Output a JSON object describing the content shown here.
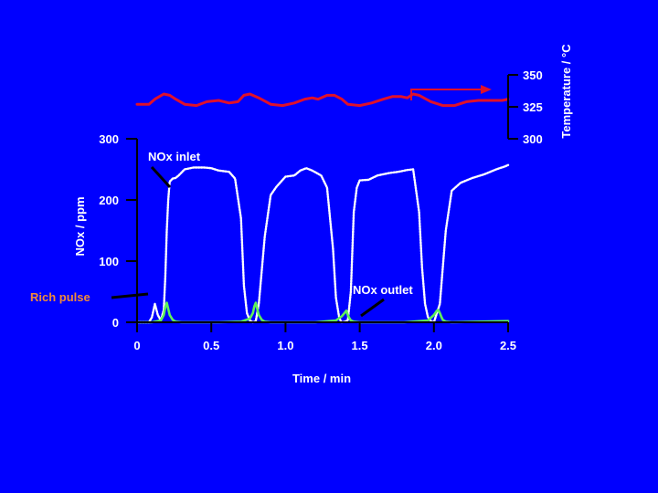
{
  "chart_data": {
    "type": "line",
    "background": "#0000ff",
    "xlabel": "Time / min",
    "ylabel": "NOx / ppm",
    "ylabel2": "Temperature / °C",
    "xlim": [
      0,
      2.5
    ],
    "ylim": [
      0,
      300
    ],
    "ylim2": [
      300,
      350
    ],
    "x_ticks": [
      "0",
      "0.5",
      "1.0",
      "1.5",
      "2.0",
      "2.5"
    ],
    "y_ticks": [
      "0",
      "100",
      "200",
      "300"
    ],
    "y2_ticks": [
      "300",
      "325",
      "350"
    ],
    "grid": false,
    "annotations": {
      "nox_inlet": "NOx inlet",
      "nox_outlet": "NOx outlet",
      "rich_pulse": "Rich pulse"
    },
    "series": [
      {
        "key": "temperature",
        "axis": "y2",
        "color": "#e0102a",
        "x": [
          0,
          0.08,
          0.12,
          0.18,
          0.22,
          0.26,
          0.32,
          0.4,
          0.47,
          0.55,
          0.62,
          0.68,
          0.72,
          0.76,
          0.82,
          0.9,
          0.98,
          1.06,
          1.13,
          1.18,
          1.22,
          1.28,
          1.33,
          1.38,
          1.42,
          1.5,
          1.58,
          1.66,
          1.72,
          1.78,
          1.82,
          1.86,
          1.9,
          1.98,
          2.06,
          2.14,
          2.22,
          2.3,
          2.38,
          2.46,
          2.5
        ],
        "values": [
          327,
          327,
          331,
          335,
          334,
          331,
          327,
          326,
          329,
          330,
          328,
          329,
          334,
          335,
          332,
          327,
          326,
          328,
          331,
          332,
          331,
          334,
          334,
          331,
          327,
          326,
          328,
          331,
          333,
          333,
          332,
          335,
          334,
          329,
          326,
          326,
          329,
          330,
          330,
          330,
          331
        ]
      },
      {
        "key": "nox_inlet",
        "axis": "y",
        "color": "#ffffff",
        "x": [
          0,
          0.08,
          0.1,
          0.12,
          0.14,
          0.16,
          0.18,
          0.19,
          0.2,
          0.21,
          0.22,
          0.24,
          0.26,
          0.28,
          0.32,
          0.38,
          0.45,
          0.5,
          0.55,
          0.62,
          0.66,
          0.7,
          0.72,
          0.74,
          0.76,
          0.78,
          0.8,
          0.82,
          0.86,
          0.9,
          0.94,
          1.0,
          1.06,
          1.1,
          1.14,
          1.18,
          1.24,
          1.28,
          1.32,
          1.34,
          1.36,
          1.37,
          1.38,
          1.4,
          1.42,
          1.44,
          1.46,
          1.48,
          1.5,
          1.56,
          1.62,
          1.7,
          1.76,
          1.82,
          1.86,
          1.9,
          1.92,
          1.94,
          1.96,
          1.98,
          2.0,
          2.04,
          2.08,
          2.12,
          2.18,
          2.26,
          2.34,
          2.42,
          2.48,
          2.5
        ],
        "values": [
          0,
          0,
          8,
          30,
          12,
          3,
          20,
          75,
          150,
          200,
          230,
          235,
          236,
          240,
          250,
          253,
          253,
          252,
          248,
          246,
          235,
          170,
          60,
          15,
          3,
          0,
          2,
          30,
          140,
          208,
          222,
          238,
          240,
          248,
          252,
          248,
          240,
          220,
          120,
          40,
          10,
          3,
          0,
          1,
          3,
          50,
          180,
          220,
          232,
          233,
          240,
          244,
          246,
          249,
          250,
          180,
          90,
          30,
          8,
          2,
          0,
          30,
          150,
          215,
          228,
          236,
          242,
          250,
          255,
          257
        ]
      },
      {
        "key": "nox_outlet",
        "axis": "y",
        "color": "#5ff25a",
        "x": [
          0,
          0.1,
          0.16,
          0.18,
          0.19,
          0.2,
          0.21,
          0.22,
          0.24,
          0.26,
          0.3,
          0.55,
          0.7,
          0.76,
          0.78,
          0.79,
          0.8,
          0.81,
          0.82,
          0.84,
          0.86,
          0.9,
          1.2,
          1.34,
          1.38,
          1.4,
          1.41,
          1.42,
          1.43,
          1.44,
          1.46,
          1.5,
          1.8,
          1.96,
          2.0,
          2.02,
          2.03,
          2.04,
          2.05,
          2.06,
          2.08,
          2.12,
          2.5
        ],
        "values": [
          0,
          0,
          3,
          12,
          25,
          32,
          22,
          12,
          4,
          1,
          0,
          0,
          1,
          6,
          15,
          26,
          32,
          22,
          12,
          4,
          1,
          0,
          0,
          3,
          10,
          16,
          19,
          12,
          7,
          3,
          1,
          0,
          0,
          3,
          12,
          19,
          20,
          15,
          9,
          4,
          1,
          0,
          2
        ]
      }
    ]
  }
}
